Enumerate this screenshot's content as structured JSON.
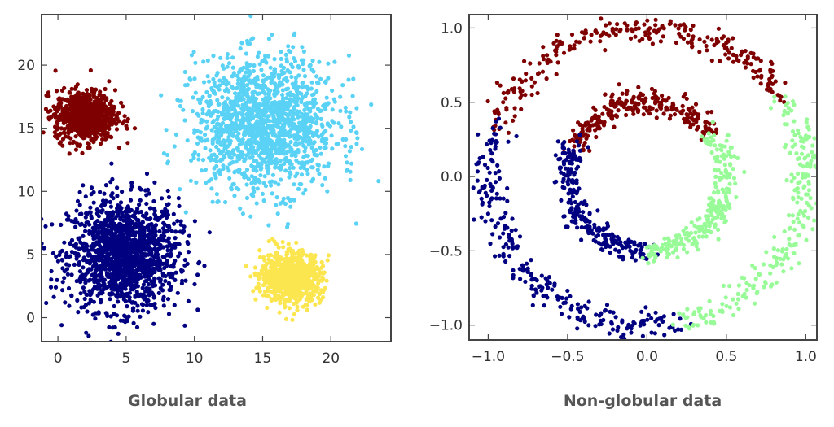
{
  "chart_data": [
    {
      "type": "scatter",
      "title": "Globular data",
      "xlim": [
        -1.2,
        24.4
      ],
      "ylim": [
        -1.9,
        24
      ],
      "xticks": [
        0,
        5,
        10,
        15,
        20
      ],
      "yticks": [
        0,
        5,
        10,
        15,
        20
      ],
      "xtick_labels": [
        "0",
        "5",
        "10",
        "15",
        "20"
      ],
      "ytick_labels": [
        "0",
        "5",
        "10",
        "15",
        "20"
      ],
      "grid": false,
      "clusters": [
        {
          "color": "#000080",
          "center": [
            4.8,
            5.0
          ],
          "std": [
            2.0,
            2.2
          ],
          "count": 1500
        },
        {
          "color": "#7f0000",
          "center": [
            2.0,
            16.0
          ],
          "std": [
            1.1,
            1.0
          ],
          "count": 800
        },
        {
          "color": "#5ad2f5",
          "center": [
            15.2,
            15.3
          ],
          "std": [
            2.6,
            2.6
          ],
          "count": 1500
        },
        {
          "color": "#fce650",
          "center": [
            17.1,
            3.2
          ],
          "std": [
            1.1,
            1.0
          ],
          "count": 800
        }
      ]
    },
    {
      "type": "scatter",
      "title": "Non-globular data",
      "xlim": [
        -1.12,
        1.07
      ],
      "ylim": [
        -1.1,
        1.09
      ],
      "xticks": [
        -1.0,
        -0.5,
        0.0,
        0.5,
        1.0
      ],
      "yticks": [
        -1.0,
        -0.5,
        0.0,
        0.5,
        1.0
      ],
      "xtick_labels": [
        "−1.0",
        "−0.5",
        "0.0",
        "0.5",
        "1.0"
      ],
      "ytick_labels": [
        "−1.0",
        "−0.5",
        "0.0",
        "0.5",
        "1.0"
      ],
      "grid": false,
      "arcs": [
        {
          "color": "#7f0000",
          "radius": 1.0,
          "angle_deg": [
            33,
            160
          ],
          "noise": 0.05,
          "count": 260
        },
        {
          "color": "#000080",
          "radius": 1.0,
          "angle_deg": [
            160,
            283
          ],
          "noise": 0.05,
          "count": 250
        },
        {
          "color": "#98fb98",
          "radius": 1.0,
          "angle_deg": [
            -77,
            33
          ],
          "noise": 0.05,
          "count": 230
        },
        {
          "color": "#7f0000",
          "radius": 0.5,
          "angle_deg": [
            35,
            157
          ],
          "noise": 0.04,
          "count": 260
        },
        {
          "color": "#000080",
          "radius": 0.5,
          "angle_deg": [
            157,
            270
          ],
          "noise": 0.04,
          "count": 250
        },
        {
          "color": "#98fb98",
          "radius": 0.5,
          "angle_deg": [
            -90,
            35
          ],
          "noise": 0.04,
          "count": 260
        }
      ]
    }
  ]
}
